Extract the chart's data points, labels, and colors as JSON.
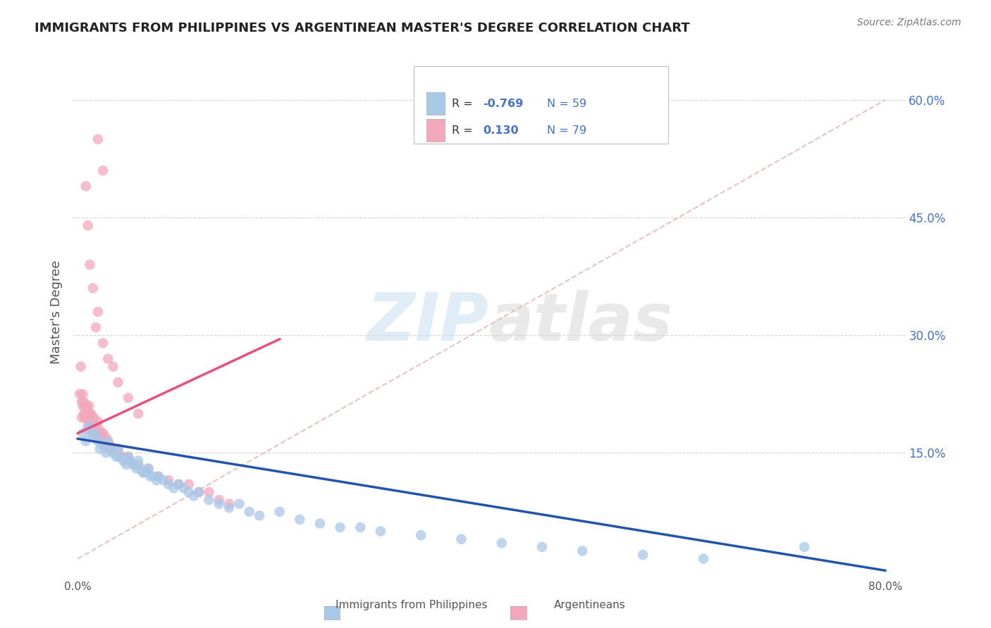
{
  "title": "IMMIGRANTS FROM PHILIPPINES VS ARGENTINEAN MASTER'S DEGREE CORRELATION CHART",
  "source": "Source: ZipAtlas.com",
  "xlabel_blue": "Immigrants from Philippines",
  "xlabel_pink": "Argentineans",
  "ylabel": "Master's Degree",
  "legend_blue_R": "-0.769",
  "legend_blue_N": "59",
  "legend_pink_R": "0.130",
  "legend_pink_N": "79",
  "xlim": [
    -0.005,
    0.82
  ],
  "ylim": [
    -0.01,
    0.67
  ],
  "right_yticks": [
    0.15,
    0.3,
    0.45,
    0.6
  ],
  "right_yticklabels": [
    "15.0%",
    "30.0%",
    "45.0%",
    "60.0%"
  ],
  "xtick_positions": [
    0.0,
    0.8
  ],
  "xticklabels": [
    "0.0%",
    "80.0%"
  ],
  "blue_color": "#a8c8e8",
  "pink_color": "#f4a8bc",
  "blue_line_color": "#2255aa",
  "pink_line_color": "#e8507a",
  "dash_color": "#ddaaaa",
  "background_color": "#ffffff",
  "grid_color": "#cccccc",
  "watermark_zip": "ZIP",
  "watermark_atlas": "atlas",
  "title_color": "#222222",
  "axis_label_color": "#555555",
  "blue_scatter_x": [
    0.005,
    0.008,
    0.01,
    0.012,
    0.015,
    0.018,
    0.02,
    0.022,
    0.025,
    0.028,
    0.03,
    0.032,
    0.035,
    0.038,
    0.04,
    0.042,
    0.045,
    0.048,
    0.05,
    0.052,
    0.055,
    0.058,
    0.06,
    0.062,
    0.065,
    0.068,
    0.07,
    0.072,
    0.075,
    0.078,
    0.08,
    0.085,
    0.09,
    0.095,
    0.1,
    0.105,
    0.11,
    0.115,
    0.12,
    0.13,
    0.14,
    0.15,
    0.16,
    0.17,
    0.18,
    0.2,
    0.22,
    0.24,
    0.26,
    0.28,
    0.3,
    0.34,
    0.38,
    0.42,
    0.46,
    0.5,
    0.56,
    0.62,
    0.72
  ],
  "blue_scatter_y": [
    0.175,
    0.165,
    0.18,
    0.185,
    0.17,
    0.175,
    0.165,
    0.155,
    0.16,
    0.15,
    0.165,
    0.155,
    0.15,
    0.145,
    0.155,
    0.145,
    0.14,
    0.135,
    0.145,
    0.14,
    0.135,
    0.13,
    0.14,
    0.13,
    0.125,
    0.125,
    0.13,
    0.12,
    0.12,
    0.115,
    0.12,
    0.115,
    0.11,
    0.105,
    0.11,
    0.105,
    0.1,
    0.095,
    0.1,
    0.09,
    0.085,
    0.08,
    0.085,
    0.075,
    0.07,
    0.075,
    0.065,
    0.06,
    0.055,
    0.055,
    0.05,
    0.045,
    0.04,
    0.035,
    0.03,
    0.025,
    0.02,
    0.015,
    0.03
  ],
  "pink_scatter_x": [
    0.002,
    0.003,
    0.004,
    0.004,
    0.005,
    0.005,
    0.006,
    0.006,
    0.007,
    0.007,
    0.008,
    0.008,
    0.009,
    0.009,
    0.01,
    0.01,
    0.011,
    0.011,
    0.012,
    0.012,
    0.013,
    0.013,
    0.014,
    0.014,
    0.015,
    0.015,
    0.016,
    0.016,
    0.017,
    0.018,
    0.018,
    0.019,
    0.02,
    0.02,
    0.021,
    0.022,
    0.022,
    0.023,
    0.024,
    0.025,
    0.025,
    0.026,
    0.028,
    0.03,
    0.03,
    0.032,
    0.035,
    0.038,
    0.04,
    0.042,
    0.045,
    0.048,
    0.05,
    0.055,
    0.06,
    0.065,
    0.07,
    0.08,
    0.09,
    0.1,
    0.11,
    0.12,
    0.13,
    0.14,
    0.15,
    0.008,
    0.01,
    0.012,
    0.015,
    0.018,
    0.02,
    0.025,
    0.03,
    0.035,
    0.04,
    0.05,
    0.06,
    0.02,
    0.025
  ],
  "pink_scatter_y": [
    0.225,
    0.26,
    0.215,
    0.195,
    0.225,
    0.21,
    0.215,
    0.2,
    0.21,
    0.195,
    0.205,
    0.195,
    0.21,
    0.195,
    0.205,
    0.185,
    0.21,
    0.195,
    0.2,
    0.185,
    0.2,
    0.19,
    0.195,
    0.175,
    0.19,
    0.175,
    0.195,
    0.18,
    0.185,
    0.175,
    0.185,
    0.17,
    0.19,
    0.175,
    0.18,
    0.17,
    0.175,
    0.165,
    0.175,
    0.165,
    0.175,
    0.16,
    0.17,
    0.165,
    0.155,
    0.16,
    0.155,
    0.15,
    0.155,
    0.145,
    0.145,
    0.14,
    0.145,
    0.135,
    0.135,
    0.125,
    0.13,
    0.12,
    0.115,
    0.11,
    0.11,
    0.1,
    0.1,
    0.09,
    0.085,
    0.49,
    0.44,
    0.39,
    0.36,
    0.31,
    0.33,
    0.29,
    0.27,
    0.26,
    0.24,
    0.22,
    0.2,
    0.55,
    0.51
  ],
  "blue_line_x0": 0.0,
  "blue_line_x1": 0.8,
  "blue_line_y0": 0.168,
  "blue_line_y1": 0.0,
  "pink_line_x0": 0.0,
  "pink_line_x1": 0.2,
  "pink_line_y0": 0.175,
  "pink_line_y1": 0.295,
  "dash_line_x0": 0.0,
  "dash_line_x1": 0.8,
  "dash_line_y0": 0.015,
  "dash_line_y1": 0.6
}
